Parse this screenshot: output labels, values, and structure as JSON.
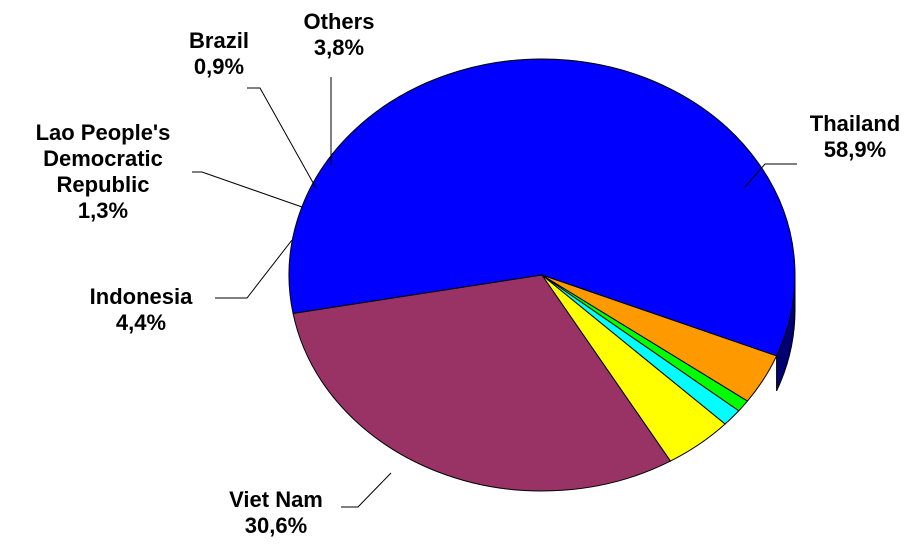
{
  "chart_data": {
    "type": "pie",
    "style": "3d",
    "title": "",
    "start_slice": "Thailand",
    "slices": [
      {
        "label": "Thailand",
        "label_lines": [
          "Thailand"
        ],
        "value": 58.9,
        "value_label": "58,9%",
        "color": "#0000ff"
      },
      {
        "label": "Viet Nam",
        "label_lines": [
          "Viet Nam"
        ],
        "value": 30.6,
        "value_label": "30,6%",
        "color": "#993366"
      },
      {
        "label": "Indonesia",
        "label_lines": [
          "Indonesia"
        ],
        "value": 4.4,
        "value_label": "4,4%",
        "color": "#ffff00"
      },
      {
        "label": "Lao People's Democratic Republic",
        "label_lines": [
          "Lao People's",
          "Democratic",
          "Republic"
        ],
        "value": 1.3,
        "value_label": "1,3%",
        "color": "#00ffff"
      },
      {
        "label": "Brazil",
        "label_lines": [
          "Brazil"
        ],
        "value": 0.9,
        "value_label": "0,9%",
        "color": "#00ff00"
      },
      {
        "label": "Others",
        "label_lines": [
          "Others"
        ],
        "value": 3.8,
        "value_label": "3,8%",
        "color": "#ff9900"
      }
    ],
    "legend": "none",
    "data_labels": "outside with leader lines"
  }
}
